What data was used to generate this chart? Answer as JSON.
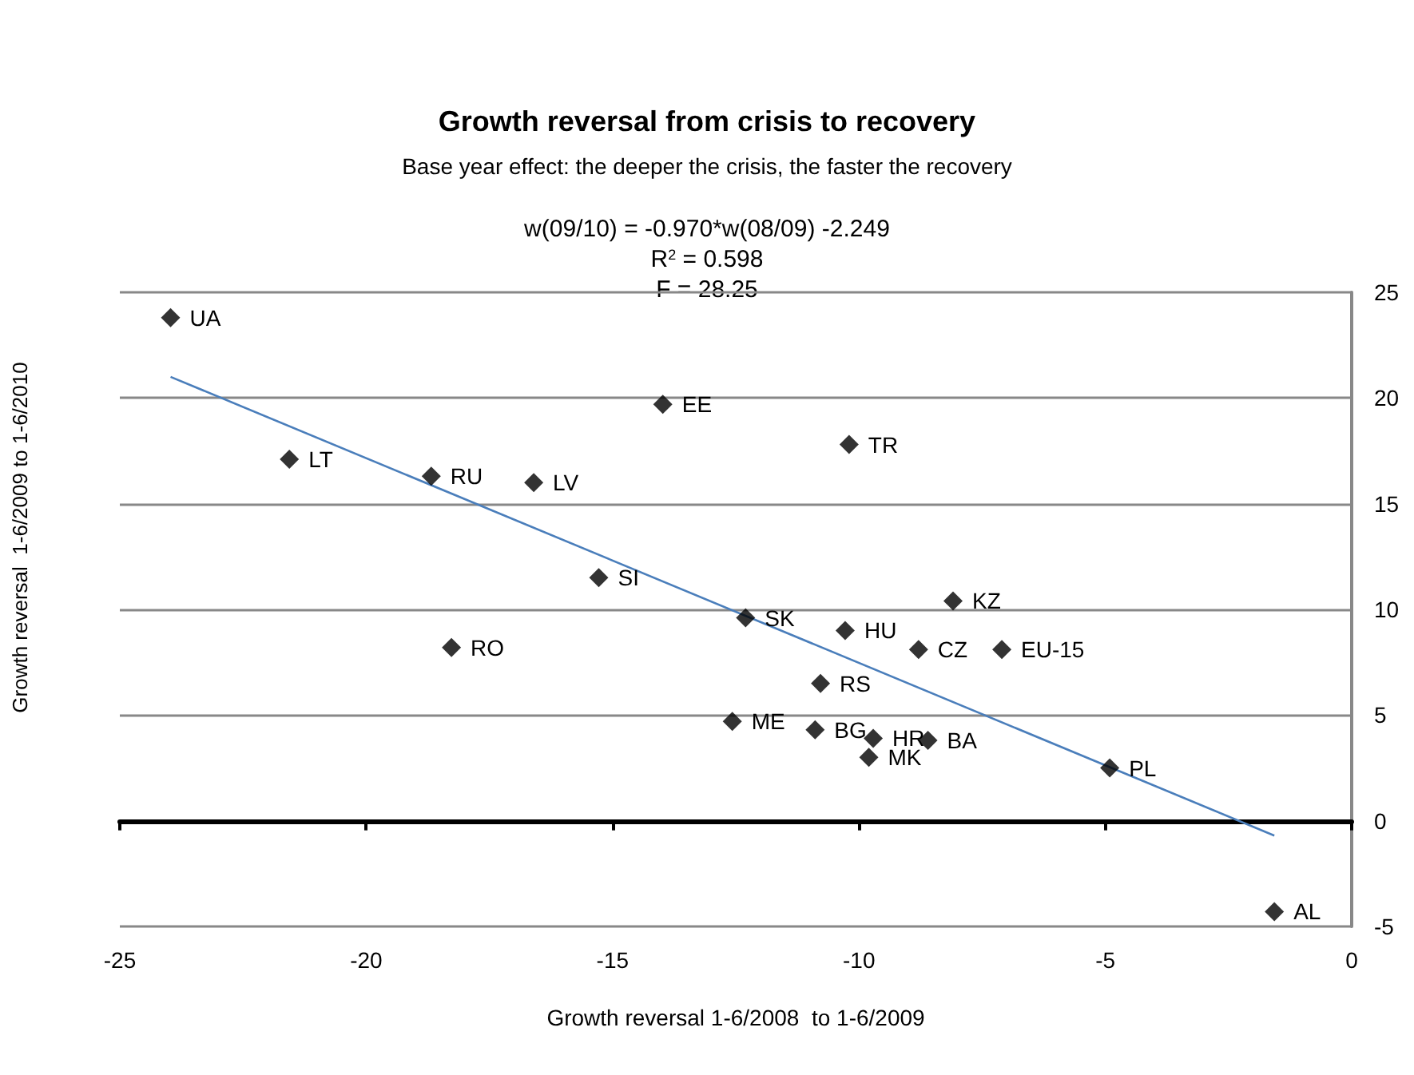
{
  "chart_data": {
    "type": "scatter",
    "title": "Growth reversal from crisis to recovery",
    "subtitle": "Base year effect: the deeper the crisis, the faster the recovery",
    "xlabel": "Growth reversal 1-6/2008  to 1-6/2009",
    "ylabel": "Growth reversal  1-6/2009 to 1-6/2010",
    "series": [
      {
        "color": "#000000",
        "marker": "diamond",
        "x": [
          -23.97,
          -13.98,
          -21.56,
          -18.68,
          -16.6,
          -15.28,
          -12.3,
          -18.27,
          -10.2,
          -8.09,
          -10.28,
          -8.79,
          -7.1,
          -10.78,
          -12.57,
          -10.89,
          -9.8,
          -9.71,
          -8.6,
          -4.91,
          -1.57
        ],
        "values": [
          23.8,
          19.7,
          17.1,
          16.3,
          16.0,
          11.5,
          9.6,
          8.2,
          17.8,
          10.4,
          9.0,
          8.1,
          8.1,
          6.5,
          4.7,
          4.3,
          3.0,
          3.9,
          3.8,
          2.5,
          -4.3
        ]
      },
      {
        "type": "line",
        "color": "#4a7ebb",
        "marker": "none",
        "x": [
          -23.97,
          -1.57
        ],
        "values": [
          21.0,
          -0.7
        ]
      }
    ],
    "annotations": [
      "w(09/10) = -0.970*w(08/09) -2.249",
      "R$^{2}$ = 0.598",
      "F = 28.25",
      {
        "text": "UA",
        "x": -23.97,
        "y": 23.8
      },
      {
        "text": "EE",
        "x": -13.98,
        "y": 19.7
      },
      {
        "text": "LT",
        "x": -21.56,
        "y": 17.1
      },
      {
        "text": "RU",
        "x": -18.68,
        "y": 16.3
      },
      {
        "text": "LV",
        "x": -16.6,
        "y": 16.0
      },
      {
        "text": "SI",
        "x": -15.28,
        "y": 11.5
      },
      {
        "text": "SK",
        "x": -12.3,
        "y": 9.6
      },
      {
        "text": "RO",
        "x": -18.27,
        "y": 8.2
      },
      {
        "text": "TR",
        "x": -10.2,
        "y": 17.8
      },
      {
        "text": "KZ",
        "x": -8.09,
        "y": 10.4
      },
      {
        "text": "HU",
        "x": -10.28,
        "y": 9.0
      },
      {
        "text": "CZ",
        "x": -8.79,
        "y": 8.1
      },
      {
        "text": "EU-15",
        "x": -7.1,
        "y": 8.1
      },
      {
        "text": "RS",
        "x": -10.78,
        "y": 6.5
      },
      {
        "text": "ME",
        "x": -12.57,
        "y": 4.7
      },
      {
        "text": "BG",
        "x": -10.89,
        "y": 4.3
      },
      {
        "text": "MK",
        "x": -9.8,
        "y": 3.0
      },
      {
        "text": "HR",
        "x": -9.71,
        "y": 3.9
      },
      {
        "text": "BA",
        "x": -8.6,
        "y": 3.8
      },
      {
        "text": "PL",
        "x": -4.91,
        "y": 2.5
      },
      {
        "text": "AL",
        "x": -1.57,
        "y": -4.3
      }
    ],
    "xlim": [
      -25,
      0
    ],
    "xticks": [
      -25,
      -20,
      -15,
      -10,
      -5,
      0
    ],
    "ylim": [
      -5,
      25
    ],
    "yticks": [
      -5,
      0,
      5,
      10,
      15,
      20,
      25
    ],
    "grid": "y"
  }
}
